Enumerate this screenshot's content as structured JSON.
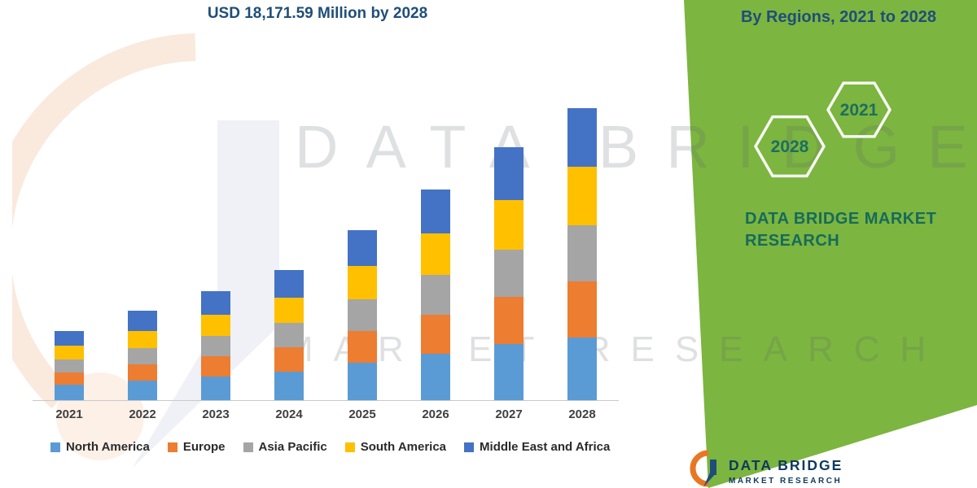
{
  "page": {
    "title_line": "USD 18,171.59 Million by 2028",
    "right_panel": {
      "heading": "By Regions, 2021 to 2028",
      "hexagons": [
        {
          "label": "2028"
        },
        {
          "label": "2021"
        }
      ],
      "brand_line1": "DATA BRIDGE MARKET",
      "brand_line2": "RESEARCH",
      "green_bg": "#7CB53F"
    },
    "watermark": {
      "line1": "DATA BRIDGE",
      "line2": "MARKET RESEARCH"
    },
    "footer_logo": {
      "name": "DATA BRIDGE",
      "subname": "MARKET RESEARCH"
    }
  },
  "chart_data": {
    "type": "bar",
    "stacked": true,
    "title": "USD 18,171.59 Million by 2028",
    "xlabel": "",
    "ylabel": "",
    "unit": "USD Million",
    "grid": false,
    "legend_position": "bottom",
    "ylim": [
      0,
      20000
    ],
    "categories": [
      "2021",
      "2022",
      "2023",
      "2024",
      "2025",
      "2026",
      "2027",
      "2028"
    ],
    "series": [
      {
        "name": "North America",
        "color": "#5B9BD5",
        "values": [
          950,
          1200,
          1480,
          1780,
          2330,
          2900,
          3480,
          3900
        ]
      },
      {
        "name": "Europe",
        "color": "#ED7D31",
        "values": [
          780,
          1010,
          1240,
          1500,
          1960,
          2430,
          2930,
          3480
        ]
      },
      {
        "name": "Asia Pacific",
        "color": "#A5A5A5",
        "values": [
          810,
          1040,
          1280,
          1530,
          2010,
          2480,
          2980,
          3530
        ]
      },
      {
        "name": "South America",
        "color": "#FFC000",
        "values": [
          840,
          1080,
          1320,
          1580,
          2070,
          2560,
          3080,
          3640
        ]
      },
      {
        "name": "Middle East and Africa",
        "color": "#4472C4",
        "values": [
          920,
          1220,
          1480,
          1710,
          2230,
          2730,
          3280,
          3621.59
        ]
      }
    ],
    "totals": [
      4300,
      5550,
      6800,
      8100,
      10600,
      13100,
      15750,
      18171.59
    ]
  }
}
